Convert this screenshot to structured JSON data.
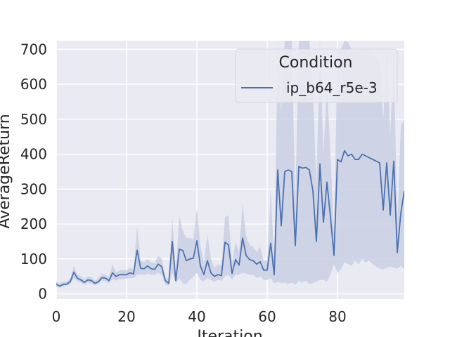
{
  "chart_data": {
    "type": "line",
    "xlabel": "Iteration",
    "ylabel": "AverageReturn",
    "xlim": [
      0,
      99
    ],
    "ylim": [
      -15,
      725
    ],
    "x_ticks": [
      0,
      20,
      40,
      60,
      80
    ],
    "y_ticks": [
      0,
      100,
      200,
      300,
      400,
      500,
      600,
      700
    ],
    "grid": true,
    "legend": {
      "title": "Condition",
      "placement": "top-right"
    },
    "colors": {
      "line": "#4c72b0",
      "band": "#c9d0e4",
      "plot_bg": "#eaeaf2",
      "grid": "#ffffff"
    },
    "series": [
      {
        "name": "ip_b64_r5e-3",
        "x": [
          0,
          1,
          2,
          3,
          4,
          5,
          6,
          7,
          8,
          9,
          10,
          11,
          12,
          13,
          14,
          15,
          16,
          17,
          18,
          19,
          20,
          21,
          22,
          23,
          24,
          25,
          26,
          27,
          28,
          29,
          30,
          31,
          32,
          33,
          34,
          35,
          36,
          37,
          38,
          39,
          40,
          41,
          42,
          43,
          44,
          45,
          46,
          47,
          48,
          49,
          50,
          51,
          52,
          53,
          54,
          55,
          56,
          57,
          58,
          59,
          60,
          61,
          62,
          63,
          64,
          65,
          66,
          67,
          68,
          69,
          70,
          71,
          72,
          73,
          74,
          75,
          76,
          77,
          78,
          79,
          80,
          81,
          82,
          83,
          84,
          85,
          86,
          87,
          88,
          89,
          90,
          91,
          92,
          93,
          94,
          95,
          96,
          97,
          98,
          99
        ],
        "y": [
          28,
          22,
          27,
          28,
          35,
          62,
          45,
          40,
          33,
          40,
          38,
          30,
          35,
          46,
          45,
          38,
          60,
          50,
          55,
          55,
          55,
          60,
          57,
          125,
          73,
          72,
          80,
          72,
          70,
          85,
          78,
          38,
          30,
          150,
          38,
          128,
          124,
          95,
          100,
          102,
          152,
          80,
          55,
          95,
          60,
          50,
          55,
          52,
          148,
          140,
          58,
          98,
          82,
          160,
          110,
          98,
          95,
          85,
          92,
          68,
          68,
          145,
          55,
          355,
          195,
          350,
          355,
          350,
          138,
          365,
          360,
          362,
          355,
          295,
          150,
          372,
          205,
          320,
          220,
          110,
          385,
          378,
          410,
          395,
          400,
          385,
          385,
          400,
          395,
          390,
          385,
          380,
          375,
          240,
          375,
          225,
          380,
          118,
          230,
          295
        ],
        "band_low": [
          20,
          18,
          20,
          24,
          28,
          45,
          36,
          32,
          26,
          32,
          30,
          25,
          28,
          38,
          36,
          30,
          42,
          38,
          42,
          42,
          44,
          45,
          45,
          55,
          55,
          55,
          58,
          55,
          55,
          60,
          55,
          28,
          22,
          60,
          30,
          45,
          30,
          28,
          40,
          48,
          60,
          40,
          35,
          45,
          40,
          35,
          40,
          38,
          50,
          55,
          40,
          55,
          55,
          60,
          58,
          55,
          55,
          45,
          50,
          40,
          40,
          45,
          30,
          35,
          30,
          32,
          28,
          32,
          26,
          38,
          32,
          38,
          28,
          30,
          35,
          40,
          40,
          35,
          55,
          85,
          60,
          70,
          90,
          85,
          80,
          95,
          85,
          100,
          90,
          95,
          85,
          78,
          72,
          70,
          75,
          78,
          75,
          72,
          80,
          70
        ],
        "band_high": [
          35,
          30,
          35,
          35,
          45,
          80,
          55,
          50,
          42,
          50,
          48,
          38,
          45,
          58,
          55,
          48,
          85,
          62,
          68,
          68,
          68,
          75,
          70,
          195,
          95,
          90,
          100,
          90,
          88,
          110,
          100,
          50,
          40,
          220,
          60,
          225,
          180,
          160,
          160,
          155,
          245,
          140,
          90,
          170,
          100,
          75,
          85,
          80,
          220,
          225,
          90,
          150,
          120,
          260,
          165,
          140,
          135,
          120,
          135,
          95,
          95,
          300,
          90,
          720,
          520,
          725,
          725,
          725,
          260,
          725,
          725,
          725,
          725,
          600,
          300,
          725,
          400,
          600,
          400,
          180,
          700,
          700,
          725,
          720,
          700,
          690,
          690,
          700,
          700,
          695,
          690,
          680,
          670,
          500,
          700,
          450,
          700,
          200,
          480,
          500
        ]
      }
    ]
  }
}
